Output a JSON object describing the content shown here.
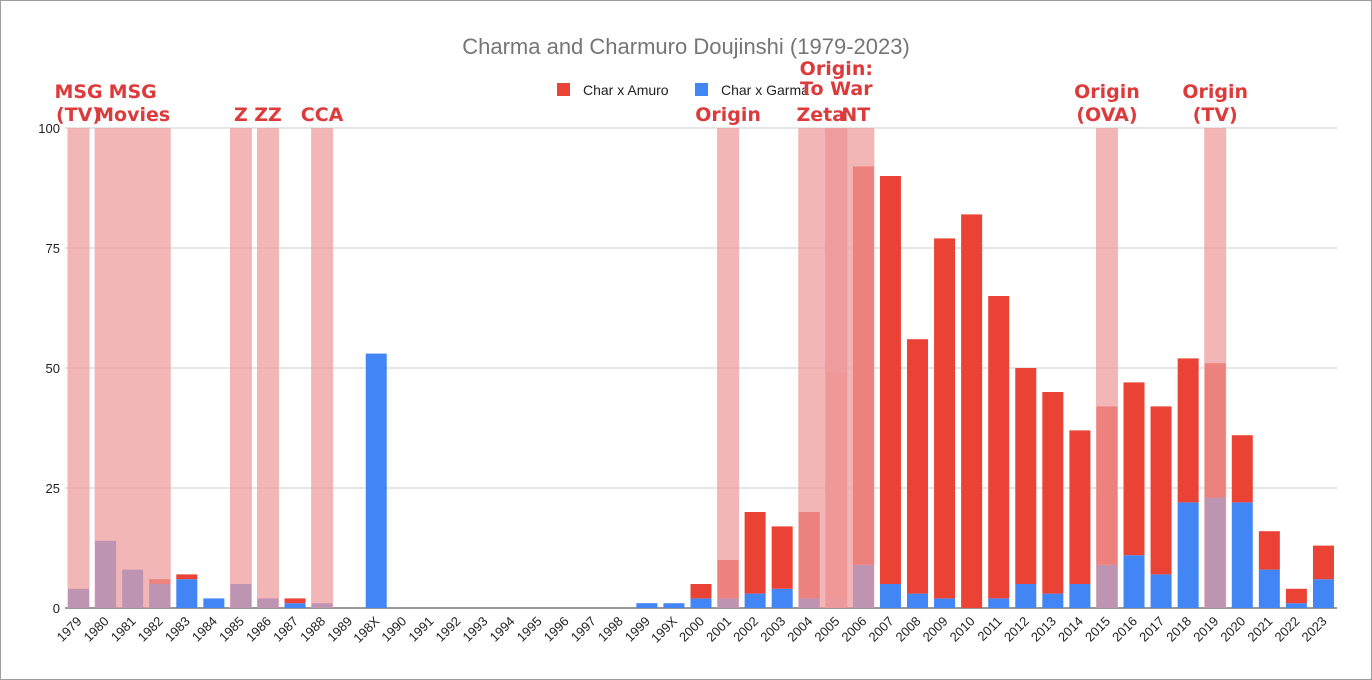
{
  "chart_data": {
    "type": "bar",
    "stacked": true,
    "title": "Charma and Charmuro Doujinshi (1979-2023)",
    "xlabel": "",
    "ylabel": "",
    "ylim": [
      0,
      100
    ],
    "yticks": [
      0,
      25,
      50,
      75,
      100
    ],
    "grid": true,
    "legend_position": "top",
    "categories": [
      "1979",
      "1980",
      "1981",
      "1982",
      "1983",
      "1984",
      "1985",
      "1986",
      "1987",
      "1988",
      "1989",
      "198X",
      "1990",
      "1991",
      "1992",
      "1993",
      "1994",
      "1995",
      "1996",
      "1997",
      "1998",
      "1999",
      "199X",
      "2000",
      "2001",
      "2002",
      "2003",
      "2004",
      "2005",
      "2006",
      "2007",
      "2008",
      "2009",
      "2010",
      "2011",
      "2012",
      "2013",
      "2014",
      "2015",
      "2016",
      "2017",
      "2018",
      "2019",
      "2020",
      "2021",
      "2022",
      "2023"
    ],
    "series": [
      {
        "name": "Char x Garma",
        "color": "#4285f4",
        "values": [
          4,
          14,
          8,
          5,
          6,
          2,
          5,
          2,
          1,
          1,
          0,
          53,
          0,
          0,
          0,
          0,
          0,
          0,
          0,
          0,
          0,
          1,
          1,
          2,
          2,
          3,
          4,
          2,
          2,
          9,
          5,
          3,
          2,
          0,
          2,
          5,
          3,
          5,
          9,
          11,
          7,
          22,
          23,
          22,
          8,
          1,
          6
        ]
      },
      {
        "name": "Char x Amuro",
        "color": "#ea4335",
        "values": [
          0,
          0,
          0,
          1,
          1,
          0,
          0,
          0,
          1,
          0,
          0,
          0,
          0,
          0,
          0,
          0,
          0,
          0,
          0,
          0,
          0,
          0,
          0,
          3,
          8,
          17,
          13,
          18,
          47,
          83,
          85,
          53,
          75,
          82,
          63,
          45,
          42,
          32,
          33,
          36,
          35,
          30,
          28,
          14,
          8,
          3,
          7
        ]
      }
    ],
    "legend": [
      "Char x Amuro",
      "Char x Garma"
    ],
    "annotations": [
      {
        "lines": [
          "MSG",
          "(TV)"
        ],
        "from": "1979",
        "to": "1979"
      },
      {
        "lines": [
          "MSG",
          "Movies"
        ],
        "from": "1980",
        "to": "1982"
      },
      {
        "lines": [
          "Z"
        ],
        "from": "1985",
        "to": "1985"
      },
      {
        "lines": [
          "ZZ"
        ],
        "from": "1986",
        "to": "1986"
      },
      {
        "lines": [
          "CCA"
        ],
        "from": "1988",
        "to": "1988"
      },
      {
        "lines": [
          "Origin"
        ],
        "from": "2001",
        "to": "2001"
      },
      {
        "lines": [
          "Zeta"
        ],
        "from": "2004",
        "to": "2005"
      },
      {
        "lines": [
          "Origin:",
          "To War"
        ],
        "from": "2005",
        "to": "2005"
      },
      {
        "lines": [
          "NT"
        ],
        "from": "2005",
        "to": "2006"
      },
      {
        "lines": [
          "Origin",
          "(OVA)"
        ],
        "from": "2015",
        "to": "2015"
      },
      {
        "lines": [
          "Origin",
          "(TV)"
        ],
        "from": "2019",
        "to": "2019"
      }
    ],
    "annotation_color": "#dd3b3b",
    "highlight_color": "#ef9a9a"
  }
}
